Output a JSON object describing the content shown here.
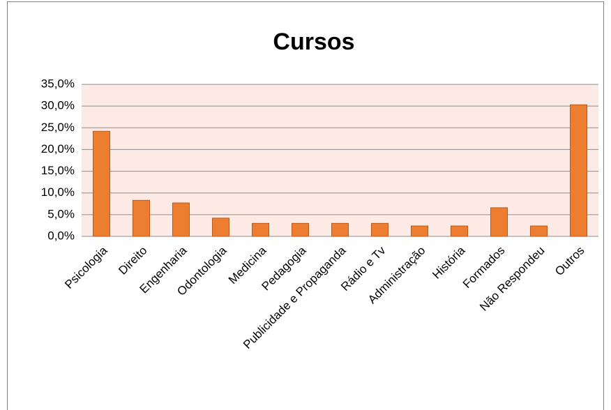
{
  "chart_data": {
    "type": "bar",
    "title": "Cursos",
    "categories": [
      "Psicologia",
      "Direito",
      "Engenharia",
      "Odontologia",
      "Medicina",
      "Pedagogia",
      "Publicidade e Propaganda",
      "Rádio e Tv",
      "Administração",
      "História",
      "Formados",
      "Não Respondeu",
      "Outros"
    ],
    "values": [
      24.2,
      8.3,
      7.7,
      4.2,
      3.0,
      3.0,
      3.0,
      3.0,
      2.4,
      2.4,
      6.6,
      2.4,
      30.3
    ],
    "color": "#ed7d31",
    "ylim": [
      0,
      35
    ],
    "yticks": [
      {
        "value": 0,
        "label": "0,0%"
      },
      {
        "value": 5,
        "label": "5,0%"
      },
      {
        "value": 10,
        "label": "10,0%"
      },
      {
        "value": 15,
        "label": "15,0%"
      },
      {
        "value": 20,
        "label": "20,0%"
      },
      {
        "value": 25,
        "label": "25,0%"
      },
      {
        "value": 30,
        "label": "30,0%"
      },
      {
        "value": 35,
        "label": "35,0%"
      }
    ],
    "grid": true
  }
}
